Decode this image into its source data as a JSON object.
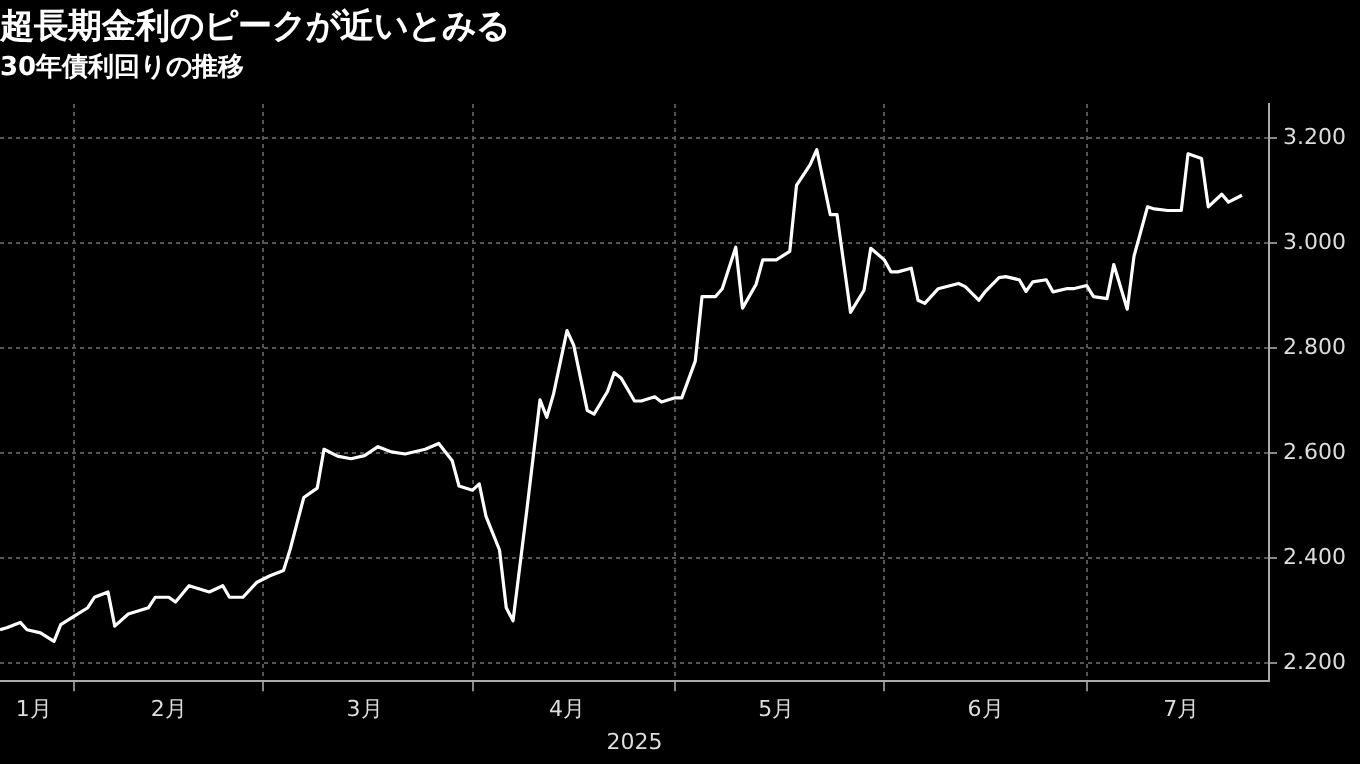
{
  "chart_data": {
    "type": "line",
    "title": "超長期金利のピークが近いとみる",
    "subtitle": "30年債利回りの推移",
    "xlabel": "2025",
    "xlim": [
      "2025-01-21",
      "2025-07-28"
    ],
    "xticks": [
      {
        "value": "2025-01-26",
        "label": "1月"
      },
      {
        "value": "2025-02-01",
        "label": null
      },
      {
        "value": "2025-02-15",
        "label": "2月"
      },
      {
        "value": "2025-03-01",
        "label": null
      },
      {
        "value": "2025-03-16",
        "label": "3月"
      },
      {
        "value": "2025-04-01",
        "label": null
      },
      {
        "value": "2025-04-15",
        "label": "4月"
      },
      {
        "value": "2025-05-01",
        "label": null
      },
      {
        "value": "2025-05-16",
        "label": "5月"
      },
      {
        "value": "2025-06-01",
        "label": null
      },
      {
        "value": "2025-06-16",
        "label": "6月"
      },
      {
        "value": "2025-07-01",
        "label": null
      },
      {
        "value": "2025-07-15",
        "label": "7月"
      }
    ],
    "ylim": [
      2.165,
      3.265
    ],
    "yticks": [
      {
        "value": 2.2,
        "label": "2.200"
      },
      {
        "value": 2.4,
        "label": "2.400"
      },
      {
        "value": 2.6,
        "label": "2.600"
      },
      {
        "value": 2.8,
        "label": "2.800"
      },
      {
        "value": 3.0,
        "label": "3.000"
      },
      {
        "value": 3.2,
        "label": "3.200"
      }
    ],
    "grid": true,
    "legend": false,
    "marker": "none",
    "line_style": "solid",
    "x": [
      "2025-01-21",
      "2025-01-22",
      "2025-01-24",
      "2025-01-25",
      "2025-01-27",
      "2025-01-29",
      "2025-01-30",
      "2025-02-01",
      "2025-02-03",
      "2025-02-04",
      "2025-02-06",
      "2025-02-07",
      "2025-02-09",
      "2025-02-12",
      "2025-02-13",
      "2025-02-15",
      "2025-02-16",
      "2025-02-18",
      "2025-02-21",
      "2025-02-23",
      "2025-02-24",
      "2025-02-26",
      "2025-02-28",
      "2025-03-02",
      "2025-03-04",
      "2025-03-05",
      "2025-03-07",
      "2025-03-09",
      "2025-03-10",
      "2025-03-12",
      "2025-03-14",
      "2025-03-16",
      "2025-03-18",
      "2025-03-20",
      "2025-03-22",
      "2025-03-25",
      "2025-03-27",
      "2025-03-29",
      "2025-03-30",
      "2025-04-01",
      "2025-04-02",
      "2025-04-03",
      "2025-04-05",
      "2025-04-06",
      "2025-04-07",
      "2025-04-09",
      "2025-04-11",
      "2025-04-12",
      "2025-04-13",
      "2025-04-15",
      "2025-04-16",
      "2025-04-18",
      "2025-04-19",
      "2025-04-21",
      "2025-04-22",
      "2025-04-23",
      "2025-04-25",
      "2025-04-26",
      "2025-04-28",
      "2025-04-29",
      "2025-05-01",
      "2025-05-02",
      "2025-05-04",
      "2025-05-05",
      "2025-05-07",
      "2025-05-08",
      "2025-05-10",
      "2025-05-11",
      "2025-05-13",
      "2025-05-14",
      "2025-05-16",
      "2025-05-18",
      "2025-05-19",
      "2025-05-21",
      "2025-05-22",
      "2025-05-24",
      "2025-05-25",
      "2025-05-27",
      "2025-05-29",
      "2025-05-30",
      "2025-06-01",
      "2025-06-02",
      "2025-06-03",
      "2025-06-05",
      "2025-06-06",
      "2025-06-07",
      "2025-06-09",
      "2025-06-12",
      "2025-06-13",
      "2025-06-15",
      "2025-06-16",
      "2025-06-18",
      "2025-06-19",
      "2025-06-21",
      "2025-06-22",
      "2025-06-23",
      "2025-06-25",
      "2025-06-26",
      "2025-06-28",
      "2025-06-29",
      "2025-07-01",
      "2025-07-02",
      "2025-07-04",
      "2025-07-05",
      "2025-07-07",
      "2025-07-08",
      "2025-07-10",
      "2025-07-11",
      "2025-07-13",
      "2025-07-15",
      "2025-07-16",
      "2025-07-18",
      "2025-07-19",
      "2025-07-21",
      "2025-07-22",
      "2025-07-24"
    ],
    "series": [
      {
        "color": "#ffffff",
        "values": [
          2.263,
          2.267,
          2.277,
          2.263,
          2.257,
          2.241,
          2.273,
          2.289,
          2.305,
          2.325,
          2.335,
          2.27,
          2.293,
          2.305,
          2.325,
          2.325,
          2.316,
          2.347,
          2.335,
          2.347,
          2.325,
          2.325,
          2.353,
          2.366,
          2.376,
          2.417,
          2.515,
          2.533,
          2.607,
          2.594,
          2.589,
          2.595,
          2.612,
          2.602,
          2.598,
          2.607,
          2.618,
          2.585,
          2.537,
          2.529,
          2.541,
          2.479,
          2.415,
          2.305,
          2.28,
          2.486,
          2.701,
          2.668,
          2.712,
          2.833,
          2.805,
          2.681,
          2.674,
          2.717,
          2.753,
          2.743,
          2.699,
          2.699,
          2.707,
          2.697,
          2.705,
          2.705,
          2.775,
          2.898,
          2.898,
          2.913,
          2.992,
          2.876,
          2.921,
          2.968,
          2.968,
          2.984,
          3.11,
          3.149,
          3.178,
          3.054,
          3.054,
          2.868,
          2.91,
          2.99,
          2.968,
          2.945,
          2.945,
          2.952,
          2.891,
          2.885,
          2.913,
          2.923,
          2.917,
          2.891,
          2.908,
          2.934,
          2.936,
          2.93,
          2.908,
          2.926,
          2.93,
          2.907,
          2.913,
          2.913,
          2.919,
          2.898,
          2.894,
          2.959,
          2.874,
          2.975,
          3.069,
          3.065,
          3.062,
          3.062,
          3.17,
          3.161,
          3.069,
          3.093,
          3.078,
          3.091
        ]
      }
    ]
  }
}
